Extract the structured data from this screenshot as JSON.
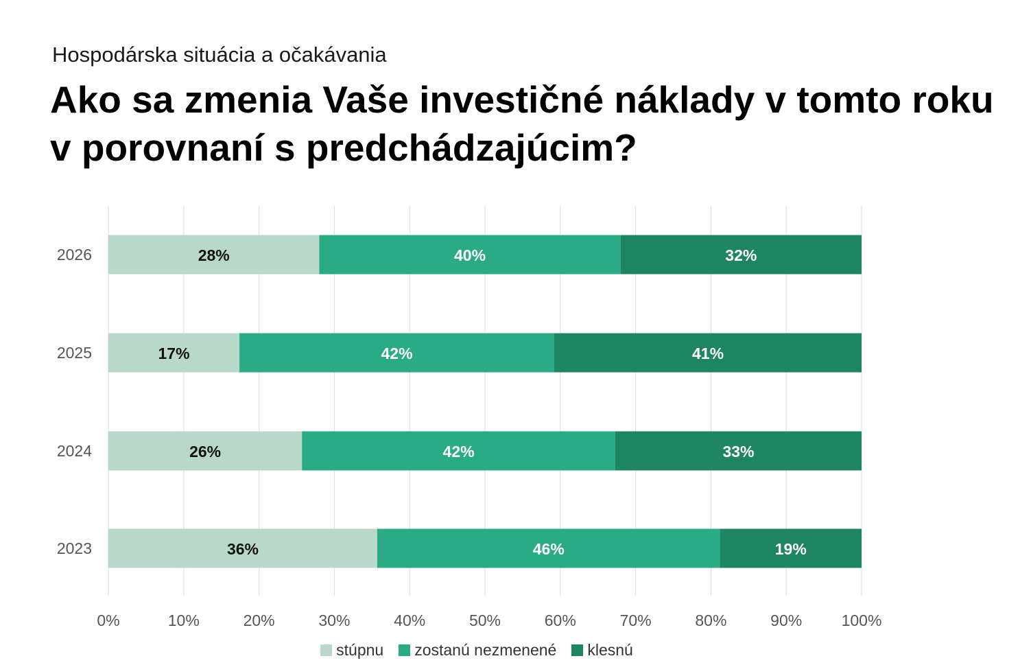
{
  "subtitle": "Hospodárska situácia a očakávania",
  "title": "Ako sa zmenia Vaše investičné náklady v tomto roku v porovnaní s predchádzajúcim?",
  "colors": {
    "stupnu": "#b8d9c9",
    "zostanu": "#2aab85",
    "klesnu": "#1f8462",
    "grid": "#dddddd",
    "label_dark": "#111111",
    "label_light": "#ffffff"
  },
  "chart_data": {
    "type": "bar",
    "orientation": "horizontal",
    "stacked": true,
    "categories": [
      "2026",
      "2025",
      "2024",
      "2023"
    ],
    "series": [
      {
        "name": "stúpnu",
        "values": [
          28,
          17.4,
          25.7,
          35.7
        ],
        "labels": [
          "28%",
          "17%",
          "26%",
          "36%"
        ],
        "color_key": "stupnu",
        "label_color_key": "label_dark"
      },
      {
        "name": "zostanú nezmenené",
        "values": [
          40,
          41.8,
          41.6,
          45.5
        ],
        "labels": [
          "40%",
          "42%",
          "42%",
          "46%"
        ],
        "color_key": "zostanu",
        "label_color_key": "label_light"
      },
      {
        "name": "klesnú",
        "values": [
          32,
          40.8,
          32.7,
          18.8
        ],
        "labels": [
          "32%",
          "41%",
          "33%",
          "19%"
        ],
        "color_key": "klesnu",
        "label_color_key": "label_light"
      }
    ],
    "xlim": [
      0,
      100
    ],
    "xticks": [
      0,
      10,
      20,
      30,
      40,
      50,
      60,
      70,
      80,
      90,
      100
    ],
    "xtick_labels": [
      "0%",
      "10%",
      "20%",
      "30%",
      "40%",
      "50%",
      "60%",
      "70%",
      "80%",
      "90%",
      "100%"
    ],
    "grid": true,
    "legend_position": "bottom-center"
  }
}
